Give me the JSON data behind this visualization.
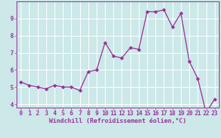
{
  "x": [
    0,
    1,
    2,
    3,
    4,
    5,
    6,
    7,
    8,
    9,
    10,
    11,
    12,
    13,
    14,
    15,
    16,
    17,
    18,
    19,
    20,
    21,
    22,
    23
  ],
  "y": [
    5.3,
    5.1,
    5.0,
    4.9,
    5.1,
    5.0,
    5.0,
    4.8,
    5.9,
    6.0,
    7.6,
    6.8,
    6.7,
    7.3,
    7.2,
    9.4,
    9.4,
    9.5,
    8.5,
    9.3,
    6.5,
    5.5,
    3.5,
    4.3
  ],
  "line_color": "#993399",
  "marker": "D",
  "markersize": 2.5,
  "linewidth": 1.0,
  "xlabel": "Windchill (Refroidissement éolien,°C)",
  "xlim": [
    -0.5,
    23.5
  ],
  "ylim": [
    3.8,
    10.0
  ],
  "yticks": [
    4,
    5,
    6,
    7,
    8,
    9
  ],
  "xticks": [
    0,
    1,
    2,
    3,
    4,
    5,
    6,
    7,
    8,
    9,
    10,
    11,
    12,
    13,
    14,
    15,
    16,
    17,
    18,
    19,
    20,
    21,
    22,
    23
  ],
  "bg_color": "#cce8e8",
  "grid_color": "#ffffff",
  "tick_color": "#993399",
  "label_color": "#993399",
  "spine_color": "#993399",
  "xlabel_fontsize": 6.5,
  "tick_fontsize": 6.0
}
